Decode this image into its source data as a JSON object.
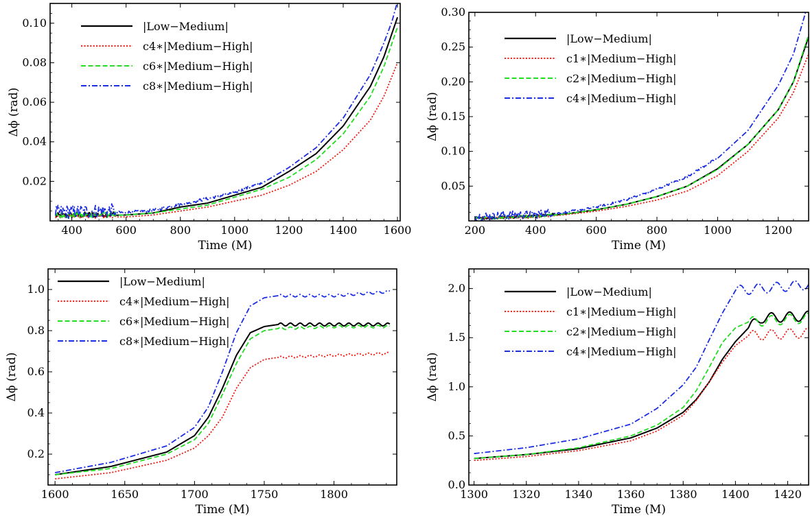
{
  "chart_data": [
    {
      "type": "line",
      "xlabel": "Time (M)",
      "ylabel": "Δϕ (rad)",
      "xlim": [
        320,
        1610
      ],
      "ylim": [
        0,
        0.11
      ],
      "xticks": [
        400,
        600,
        800,
        1000,
        1200,
        1400,
        1600
      ],
      "yticks": [
        0.02,
        0.04,
        0.06,
        0.08,
        0.1
      ],
      "ytick_labels": [
        "0.02",
        "0.04",
        "0.06",
        "0.08",
        "0.10"
      ],
      "legend_position": "top-left",
      "series": [
        {
          "name": "|Low−Medium|",
          "color": "#000000",
          "style": "solid",
          "x": [
            340,
            600,
            700,
            800,
            900,
            1000,
            1100,
            1200,
            1300,
            1400,
            1500,
            1550,
            1600
          ],
          "y": [
            0.002,
            0.003,
            0.004,
            0.007,
            0.009,
            0.013,
            0.017,
            0.025,
            0.034,
            0.048,
            0.068,
            0.083,
            0.103
          ],
          "noise": [
            [
              340,
              560,
              0.003
            ]
          ]
        },
        {
          "name": "c4∗|Medium−High|",
          "color": "#e8261d",
          "style": "dotted",
          "x": [
            340,
            600,
            700,
            800,
            900,
            1000,
            1100,
            1200,
            1300,
            1400,
            1500,
            1550,
            1600
          ],
          "y": [
            0.002,
            0.002,
            0.003,
            0.005,
            0.007,
            0.01,
            0.013,
            0.018,
            0.025,
            0.036,
            0.051,
            0.063,
            0.08
          ],
          "noise": [
            [
              340,
              560,
              0.002
            ]
          ]
        },
        {
          "name": "c6∗|Medium−High|",
          "color": "#22dd22",
          "style": "dashed",
          "x": [
            340,
            600,
            700,
            800,
            900,
            1000,
            1100,
            1200,
            1300,
            1400,
            1500,
            1550,
            1600
          ],
          "y": [
            0.002,
            0.003,
            0.004,
            0.006,
            0.008,
            0.012,
            0.016,
            0.022,
            0.031,
            0.044,
            0.063,
            0.078,
            0.098
          ],
          "noise": [
            [
              340,
              560,
              0.003
            ]
          ]
        },
        {
          "name": "c8∗|Medium−High|",
          "color": "#1a2de0",
          "style": "dashdot",
          "x": [
            340,
            600,
            700,
            800,
            900,
            1000,
            1100,
            1200,
            1300,
            1400,
            1500,
            1550,
            1580,
            1600
          ],
          "y": [
            0.003,
            0.004,
            0.005,
            0.008,
            0.011,
            0.014,
            0.019,
            0.027,
            0.037,
            0.052,
            0.074,
            0.09,
            0.101,
            0.111
          ],
          "noise": [
            [
              340,
              560,
              0.007
            ],
            [
              560,
              1100,
              0.0015
            ]
          ]
        }
      ]
    },
    {
      "type": "line",
      "xlabel": "Time (M)",
      "ylabel": "Δϕ (rad)",
      "xlim": [
        180,
        1300
      ],
      "ylim": [
        0,
        0.3
      ],
      "xticks": [
        200,
        400,
        600,
        800,
        1000,
        1200
      ],
      "yticks": [
        0.05,
        0.1,
        0.15,
        0.2,
        0.25,
        0.3
      ],
      "ytick_labels": [
        "0.05",
        "0.10",
        "0.15",
        "0.20",
        "0.25",
        "0.30"
      ],
      "legend_position": "top-left",
      "series": [
        {
          "name": "|Low−Medium|",
          "color": "#000000",
          "style": "solid",
          "x": [
            200,
            400,
            500,
            600,
            700,
            800,
            900,
            1000,
            1100,
            1200,
            1250,
            1300
          ],
          "y": [
            0.003,
            0.006,
            0.01,
            0.016,
            0.024,
            0.035,
            0.05,
            0.075,
            0.11,
            0.16,
            0.2,
            0.265
          ],
          "noise": [
            [
              200,
              460,
              0.004
            ]
          ]
        },
        {
          "name": "c1∗|Medium−High|",
          "color": "#e8261d",
          "style": "dotted",
          "x": [
            200,
            400,
            500,
            600,
            700,
            800,
            900,
            1000,
            1100,
            1200,
            1250,
            1300
          ],
          "y": [
            0.003,
            0.005,
            0.009,
            0.014,
            0.021,
            0.03,
            0.043,
            0.065,
            0.1,
            0.148,
            0.185,
            0.24
          ],
          "noise": [
            [
              200,
              460,
              0.004
            ]
          ]
        },
        {
          "name": "c2∗|Medium−High|",
          "color": "#22dd22",
          "style": "dashed",
          "x": [
            200,
            400,
            500,
            600,
            700,
            800,
            900,
            1000,
            1100,
            1200,
            1250,
            1300
          ],
          "y": [
            0.003,
            0.006,
            0.01,
            0.016,
            0.024,
            0.035,
            0.05,
            0.074,
            0.11,
            0.16,
            0.2,
            0.268
          ],
          "noise": [
            [
              200,
              460,
              0.004
            ]
          ]
        },
        {
          "name": "c4∗|Medium−High|",
          "color": "#1a2de0",
          "style": "dashdot",
          "x": [
            200,
            400,
            500,
            600,
            700,
            800,
            900,
            1000,
            1100,
            1200,
            1250,
            1290
          ],
          "y": [
            0.004,
            0.007,
            0.012,
            0.019,
            0.03,
            0.045,
            0.063,
            0.09,
            0.13,
            0.195,
            0.24,
            0.3
          ],
          "noise": [
            [
              200,
              460,
              0.012
            ],
            [
              460,
              1000,
              0.003
            ]
          ]
        }
      ]
    },
    {
      "type": "line",
      "xlabel": "Time (M)",
      "ylabel": "Δϕ (rad)",
      "xlim": [
        1595,
        1845
      ],
      "ylim": [
        0.05,
        1.1
      ],
      "xticks": [
        1600,
        1650,
        1700,
        1750,
        1800
      ],
      "yticks": [
        0.2,
        0.4,
        0.6,
        0.8,
        1.0
      ],
      "ytick_labels": [
        "0.2",
        "0.4",
        "0.6",
        "0.8",
        "1.0"
      ],
      "legend_position": "top-left",
      "series": [
        {
          "name": "|Low−Medium|",
          "color": "#000000",
          "style": "solid",
          "x": [
            1600,
            1640,
            1680,
            1700,
            1710,
            1720,
            1730,
            1740,
            1750,
            1760,
            1800,
            1840
          ],
          "y": [
            0.1,
            0.14,
            0.21,
            0.29,
            0.38,
            0.52,
            0.68,
            0.79,
            0.82,
            0.83,
            0.83,
            0.83
          ],
          "ripple": [
            [
              1760,
              0.007
            ]
          ]
        },
        {
          "name": "c4∗|Medium−High|",
          "color": "#e8261d",
          "style": "dotted",
          "x": [
            1600,
            1640,
            1680,
            1700,
            1710,
            1720,
            1730,
            1740,
            1750,
            1760,
            1800,
            1840
          ],
          "y": [
            0.08,
            0.11,
            0.17,
            0.23,
            0.29,
            0.38,
            0.52,
            0.62,
            0.66,
            0.67,
            0.68,
            0.69
          ],
          "ripple": [
            [
              1760,
              0.005
            ]
          ]
        },
        {
          "name": "c6∗|Medium−High|",
          "color": "#22dd22",
          "style": "dashed",
          "x": [
            1600,
            1640,
            1680,
            1700,
            1710,
            1720,
            1730,
            1740,
            1750,
            1760,
            1800,
            1840
          ],
          "y": [
            0.1,
            0.13,
            0.2,
            0.27,
            0.35,
            0.49,
            0.64,
            0.76,
            0.8,
            0.81,
            0.82,
            0.82
          ],
          "ripple": [
            [
              1760,
              0.006
            ]
          ]
        },
        {
          "name": "c8∗|Medium−High|",
          "color": "#1a2de0",
          "style": "dashdot",
          "x": [
            1600,
            1640,
            1680,
            1700,
            1710,
            1720,
            1730,
            1740,
            1750,
            1760,
            1800,
            1840
          ],
          "y": [
            0.11,
            0.16,
            0.24,
            0.33,
            0.43,
            0.6,
            0.79,
            0.92,
            0.96,
            0.97,
            0.97,
            0.99
          ],
          "ripple": [
            [
              1760,
              0.006
            ]
          ]
        }
      ]
    },
    {
      "type": "line",
      "xlabel": "Time (M)",
      "ylabel": "Δϕ (rad)",
      "xlim": [
        1298,
        1428
      ],
      "ylim": [
        0,
        2.2
      ],
      "xticks": [
        1300,
        1320,
        1340,
        1360,
        1380,
        1400,
        1420
      ],
      "yticks": [
        0.0,
        0.5,
        1.0,
        1.5,
        2.0
      ],
      "ytick_labels": [
        "0.0",
        "0.5",
        "1.0",
        "1.5",
        "2.0"
      ],
      "legend_position": "top-left",
      "series": [
        {
          "name": "|Low−Medium|",
          "color": "#000000",
          "style": "solid",
          "x": [
            1300,
            1320,
            1340,
            1360,
            1370,
            1380,
            1385,
            1390,
            1395,
            1400,
            1405,
            1410,
            1428
          ],
          "y": [
            0.27,
            0.31,
            0.37,
            0.48,
            0.58,
            0.74,
            0.87,
            1.05,
            1.28,
            1.46,
            1.6,
            1.7,
            1.72
          ],
          "ripple": [
            [
              1405,
              0.05
            ]
          ]
        },
        {
          "name": "c1∗|Medium−High|",
          "color": "#e8261d",
          "style": "dotted",
          "x": [
            1300,
            1320,
            1340,
            1360,
            1370,
            1380,
            1385,
            1390,
            1395,
            1400,
            1405,
            1428
          ],
          "y": [
            0.25,
            0.29,
            0.35,
            0.45,
            0.55,
            0.71,
            0.86,
            1.05,
            1.25,
            1.42,
            1.52,
            1.55
          ],
          "ripple": [
            [
              1405,
              0.05
            ]
          ]
        },
        {
          "name": "c2∗|Medium−High|",
          "color": "#22dd22",
          "style": "dashed",
          "x": [
            1300,
            1320,
            1340,
            1360,
            1370,
            1380,
            1385,
            1390,
            1395,
            1400,
            1405,
            1428
          ],
          "y": [
            0.27,
            0.31,
            0.38,
            0.5,
            0.61,
            0.79,
            0.96,
            1.2,
            1.45,
            1.6,
            1.66,
            1.7
          ],
          "ripple": [
            [
              1405,
              0.05
            ]
          ]
        },
        {
          "name": "c4∗|Medium−High|",
          "color": "#1a2de0",
          "style": "dashdot",
          "x": [
            1300,
            1320,
            1340,
            1360,
            1370,
            1380,
            1385,
            1390,
            1395,
            1400,
            1428
          ],
          "y": [
            0.32,
            0.38,
            0.47,
            0.62,
            0.78,
            1.02,
            1.2,
            1.48,
            1.75,
            1.98,
            2.04
          ],
          "ripple": [
            [
              1400,
              0.05
            ]
          ]
        }
      ]
    }
  ]
}
